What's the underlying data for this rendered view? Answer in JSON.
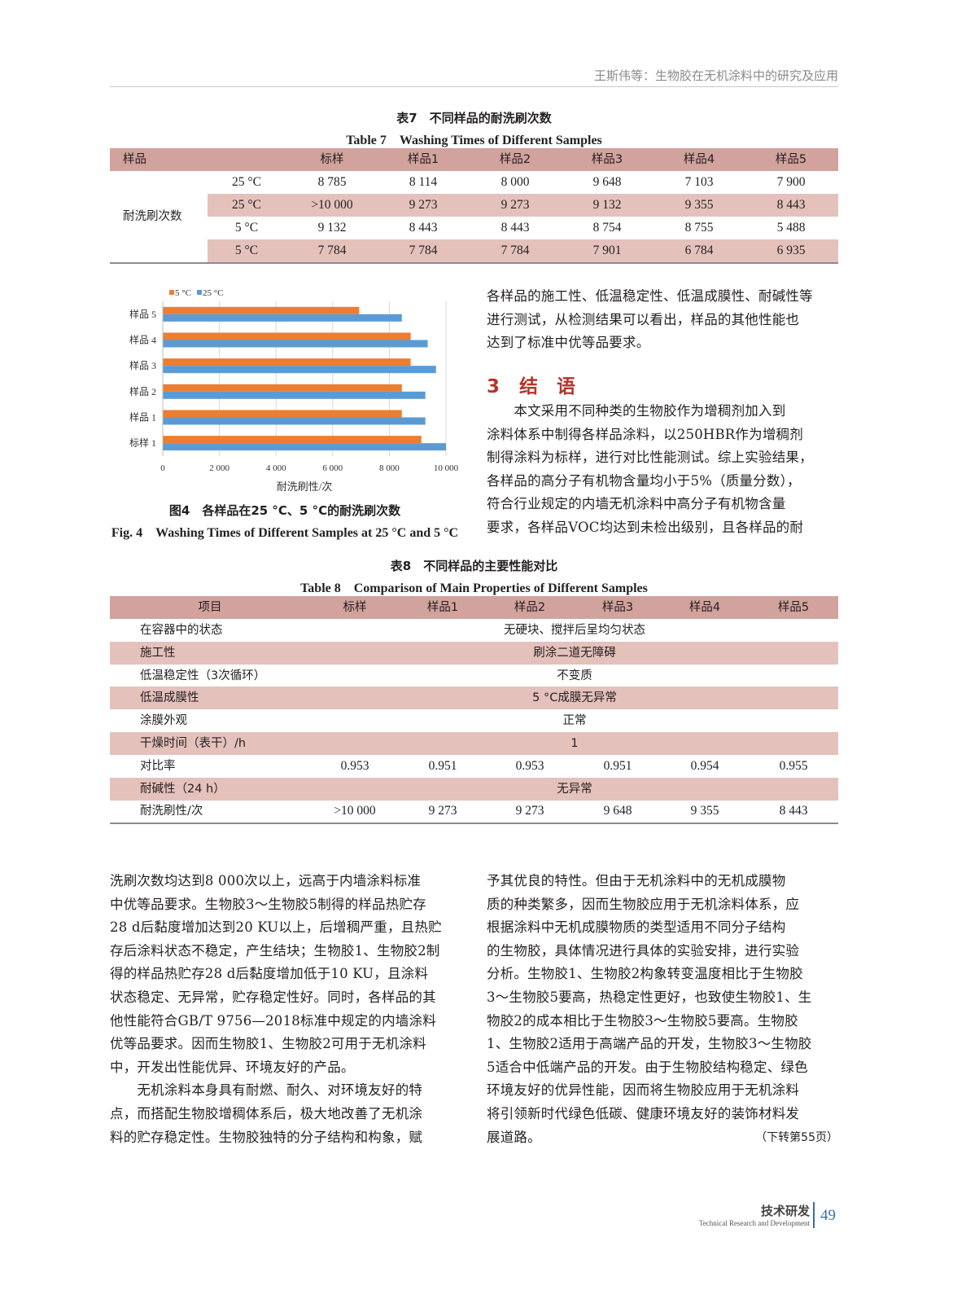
{
  "running_header": "王斯伟等：生物胶在无机涂料中的研究及应用",
  "table7": {
    "caption_cn": "表7　不同样品的耐洗刷次数",
    "caption_en": "Table 7　Washing Times of Different Samples",
    "headers": [
      "样品",
      "",
      "标样",
      "样品1",
      "样品2",
      "样品3",
      "样品4",
      "样品5"
    ],
    "row_group_label": "耐洗刷次数",
    "rows": [
      {
        "temp": "25 °C",
        "values": [
          "8 785",
          "8 114",
          "8 000",
          "9 648",
          "7 103",
          "7 900"
        ]
      },
      {
        "temp": "25 °C",
        "values": [
          ">10 000",
          "9 273",
          "9 273",
          "9 132",
          "9 355",
          "8 443"
        ]
      },
      {
        "temp": "5 °C",
        "values": [
          "9 132",
          "8 443",
          "8 443",
          "8 754",
          "8 755",
          "5 488"
        ]
      },
      {
        "temp": "5 °C",
        "values": [
          "7 784",
          "7 784",
          "7 784",
          "7 901",
          "6 784",
          "6 935"
        ]
      }
    ],
    "header_color": "#d2a29c",
    "stripe_color": "#e5c1bc"
  },
  "chart_data": {
    "type": "bar",
    "orientation": "horizontal",
    "categories": [
      "标样 1",
      "样品 1",
      "样品 2",
      "样品 3",
      "样品 4",
      "样品 5"
    ],
    "series": [
      {
        "name": "5 °C",
        "color": "#ed7d31",
        "values": [
          9132,
          8443,
          8443,
          8754,
          8755,
          6935
        ]
      },
      {
        "name": "25 °C",
        "color": "#5b9bd5",
        "values": [
          10000,
          9273,
          9273,
          9648,
          9355,
          8443
        ]
      }
    ],
    "xlabel": "耐洗刷性/次",
    "xlim": [
      0,
      10000
    ],
    "xticks": [
      "0",
      "2 000",
      "4 000",
      "6 000",
      "8 000",
      "10 000"
    ],
    "grid": true,
    "legend_position": "top-left"
  },
  "figure4": {
    "caption_cn": "图4　各样品在25 °C、5 °C的耐洗刷次数",
    "caption_en": "Fig. 4　Washing Times of Different Samples at 25 °C and 5 °C"
  },
  "right_top_text": [
    "各样品的施工性、低温稳定性、低温成膜性、耐碱性等",
    "进行测试，从检测结果可以看出，样品的其他性能也",
    "达到了标准中优等品要求。"
  ],
  "section3": {
    "heading_num": "3",
    "heading": "结　语",
    "lines": [
      "　　本文采用不同种类的生物胶作为增稠剂加入到",
      "涂料体系中制得各样品涂料，以250HBR作为增稠剂",
      "制得涂料为标样，进行对比性能测试。综上实验结果，",
      "各样品的高分子有机物含量均小于5%（质量分数），",
      "符合行业规定的内墙无机涂料中高分子有机物含量",
      "要求，各样品VOC均达到未检出级别，且各样品的耐"
    ]
  },
  "table8": {
    "caption_cn": "表8　不同样品的主要性能对比",
    "caption_en": "Table 8　Comparison of Main Properties of Different Samples",
    "headers": [
      "项目",
      "标样",
      "样品1",
      "样品2",
      "样品3",
      "样品4",
      "样品5"
    ],
    "rows": [
      {
        "item": "在容器中的状态",
        "merged": "无硬块、搅拌后呈均匀状态"
      },
      {
        "item": "施工性",
        "merged": "刷涂二道无障碍"
      },
      {
        "item": "低温稳定性（3次循环）",
        "merged": "不变质"
      },
      {
        "item": "低温成膜性",
        "merged": "5 °C成膜无异常"
      },
      {
        "item": "涂膜外观",
        "merged": "正常"
      },
      {
        "item": "干燥时间（表干）/h",
        "merged": "1"
      },
      {
        "item": "对比率",
        "values": [
          "0.953",
          "0.951",
          "0.953",
          "0.951",
          "0.954",
          "0.955"
        ]
      },
      {
        "item": "耐碱性（24 h）",
        "merged": "无异常"
      },
      {
        "item": "耐洗刷性/次",
        "values": [
          ">10 000",
          "9 273",
          "9 273",
          "9 648",
          "9 355",
          "8 443"
        ]
      }
    ]
  },
  "left_bottom_text": [
    "洗刷次数均达到8 000次以上，远高于内墙涂料标准",
    "中优等品要求。生物胶3～生物胶5制得的样品热贮存",
    "28 d后黏度增加达到20 KU以上，后增稠严重，且热贮",
    "存后涂料状态不稳定，产生结块；生物胶1、生物胶2制",
    "得的样品热贮存28 d后黏度增加低于10 KU，且涂料",
    "状态稳定、无异常，贮存稳定性好。同时，各样品的其",
    "他性能符合GB/T 9756—2018标准中规定的内墙涂料",
    "优等品要求。因而生物胶1、生物胶2可用于无机涂料",
    "中，开发出性能优异、环境友好的产品。",
    "　　无机涂料本身具有耐燃、耐久、对环境友好的特",
    "点，而搭配生物胶增稠体系后，极大地改善了无机涂",
    "料的贮存稳定性。生物胶独特的分子结构和构象，赋"
  ],
  "right_bottom_text": [
    "予其优良的特性。但由于无机涂料中的无机成膜物",
    "质的种类繁多，因而生物胶应用于无机涂料体系，应",
    "根据涂料中无机成膜物质的类型适用不同分子结构",
    "的生物胶，具体情况进行具体的实验安排，进行实验",
    "分析。生物胶1、生物胶2构象转变温度相比于生物胶",
    "3～生物胶5要高，热稳定性更好，也致使生物胶1、生",
    "物胶2的成本相比于生物胶3～生物胶5要高。生物胶",
    "1、生物胶2适用于高端产品的开发，生物胶3～生物胶",
    "5适合中低端产品的开发。由于生物胶结构稳定、绿色",
    "环境友好的优异性能，因而将生物胶应用于无机涂料",
    "将引领新时代绿色低碳、健康环境友好的装饰材料发",
    "展道路。"
  ],
  "continued_note": "（下转第55页）",
  "footer": {
    "section_cn": "技术研发",
    "section_en": "Technical Research and Development",
    "page_number": "49",
    "accent_color": "#3d6fa6"
  }
}
